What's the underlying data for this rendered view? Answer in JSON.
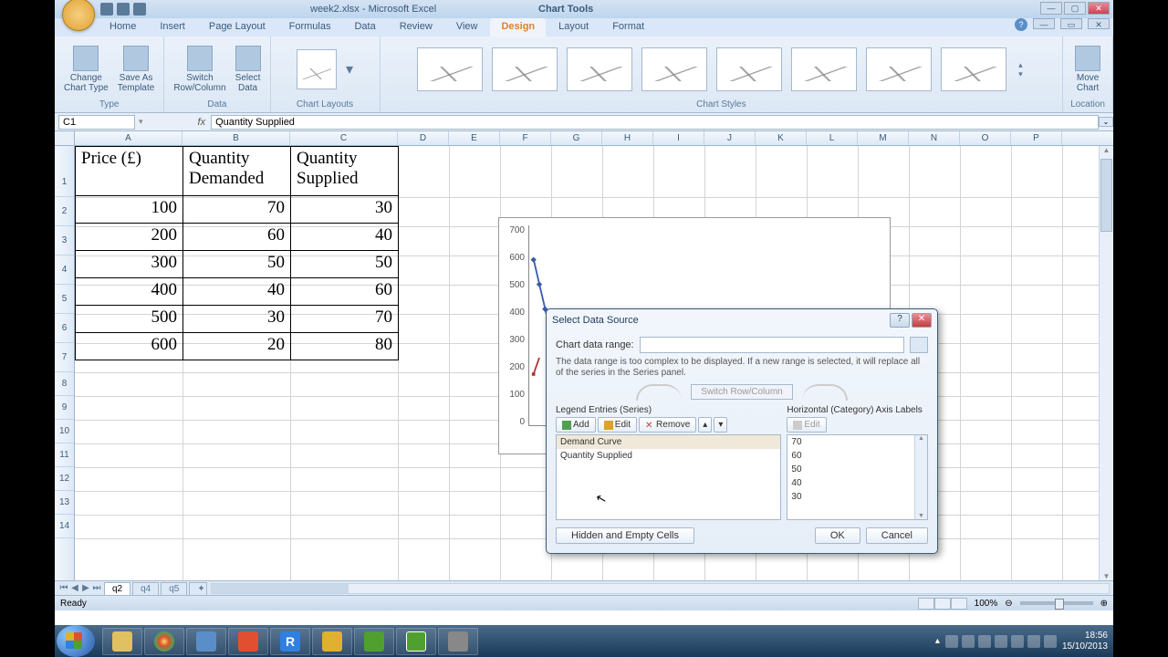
{
  "window": {
    "filename": "week2.xlsx - Microsoft Excel",
    "context_title": "Chart Tools"
  },
  "menu": {
    "tabs": [
      "Home",
      "Insert",
      "Page Layout",
      "Formulas",
      "Data",
      "Review",
      "View",
      "Design",
      "Layout",
      "Format"
    ],
    "active": "Design"
  },
  "ribbon": {
    "groups": {
      "type": {
        "label": "Type",
        "items": [
          "Change\nChart Type",
          "Save As\nTemplate"
        ]
      },
      "data": {
        "label": "Data",
        "items": [
          "Switch\nRow/Column",
          "Select\nData"
        ]
      },
      "layouts": {
        "label": "Chart Layouts"
      },
      "styles": {
        "label": "Chart Styles"
      },
      "location": {
        "label": "Location",
        "items": [
          "Move\nChart"
        ]
      }
    }
  },
  "formula_bar": {
    "namebox": "C1",
    "formula": "Quantity Supplied"
  },
  "columns": [
    "A",
    "B",
    "C",
    "D",
    "E",
    "F",
    "G",
    "H",
    "I",
    "J",
    "K",
    "L",
    "M",
    "N",
    "O",
    "P"
  ],
  "table": {
    "headers": [
      "Price (£)",
      "Quantity Demanded",
      "Quantity Supplied"
    ],
    "rows": [
      [
        100,
        70,
        30
      ],
      [
        200,
        60,
        40
      ],
      [
        300,
        50,
        50
      ],
      [
        400,
        40,
        60
      ],
      [
        500,
        30,
        70
      ],
      [
        600,
        20,
        80
      ]
    ]
  },
  "chart": {
    "yticks": [
      700,
      600,
      500,
      400,
      300,
      200,
      100,
      0
    ],
    "line_color": "#3a5aaa",
    "point_color": "#b03030"
  },
  "dialog": {
    "title": "Select Data Source",
    "range_label": "Chart data range:",
    "range_value": "",
    "note": "The data range is too complex to be displayed. If a new range is selected, it will replace all of the series in the Series panel.",
    "switch_btn": "Switch Row/Column",
    "series_label": "Legend Entries (Series)",
    "axis_label": "Horizontal (Category) Axis Labels",
    "btns": {
      "add": "Add",
      "edit": "Edit",
      "remove": "Remove"
    },
    "series": [
      "Demand Curve",
      "Quantity Supplied"
    ],
    "axis_items": [
      "70",
      "60",
      "50",
      "40",
      "30"
    ],
    "hidden_btn": "Hidden and Empty Cells",
    "ok": "OK",
    "cancel": "Cancel"
  },
  "sheets": {
    "active": "q2",
    "others": [
      "q4",
      "q5"
    ]
  },
  "statusbar": {
    "ready": "Ready",
    "zoom": "100%"
  },
  "taskbar": {
    "items_colors": [
      "#e0c060",
      "#e05030",
      "#5a8ec8",
      "#e05030",
      "#3080e0",
      "#5aa050",
      "#e0b030",
      "#50a030",
      "#888"
    ],
    "tray_time": "18:56",
    "tray_date": "15/10/2013"
  }
}
